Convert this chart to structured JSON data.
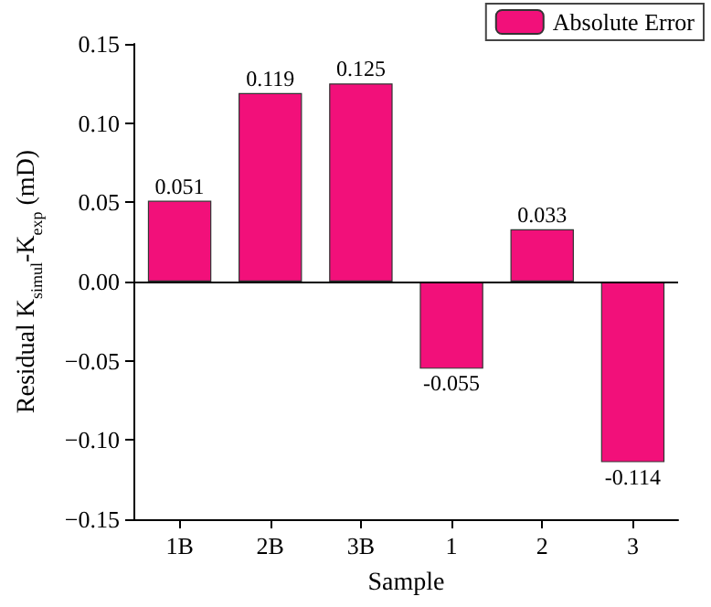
{
  "chart_data": {
    "type": "bar",
    "xlabel": "Sample",
    "ylabel": "Residual K$_{simul}$-K$_{exp}$ (mD)",
    "categories": [
      "1B",
      "2B",
      "3B",
      "1",
      "2",
      "3"
    ],
    "series": [
      {
        "name": "Absolute Error",
        "color": "#f2107a",
        "values": [
          0.051,
          0.119,
          0.125,
          -0.055,
          0.033,
          -0.114
        ]
      }
    ],
    "data_labels": true,
    "ylim": [
      -0.15,
      0.15
    ],
    "yticks": [
      {
        "value": -0.15,
        "label": "−0.15"
      },
      {
        "value": -0.1,
        "label": "−0.10"
      },
      {
        "value": -0.05,
        "label": "−0.05"
      },
      {
        "value": 0,
        "label": "0.00"
      },
      {
        "value": 0.05,
        "label": "0.05"
      },
      {
        "value": 0.1,
        "label": "0.10"
      },
      {
        "value": 0.15,
        "label": "0.15"
      }
    ],
    "ref_lines": [
      {
        "axis": "y",
        "value": 0
      }
    ],
    "legend": "top right",
    "grid": false
  }
}
